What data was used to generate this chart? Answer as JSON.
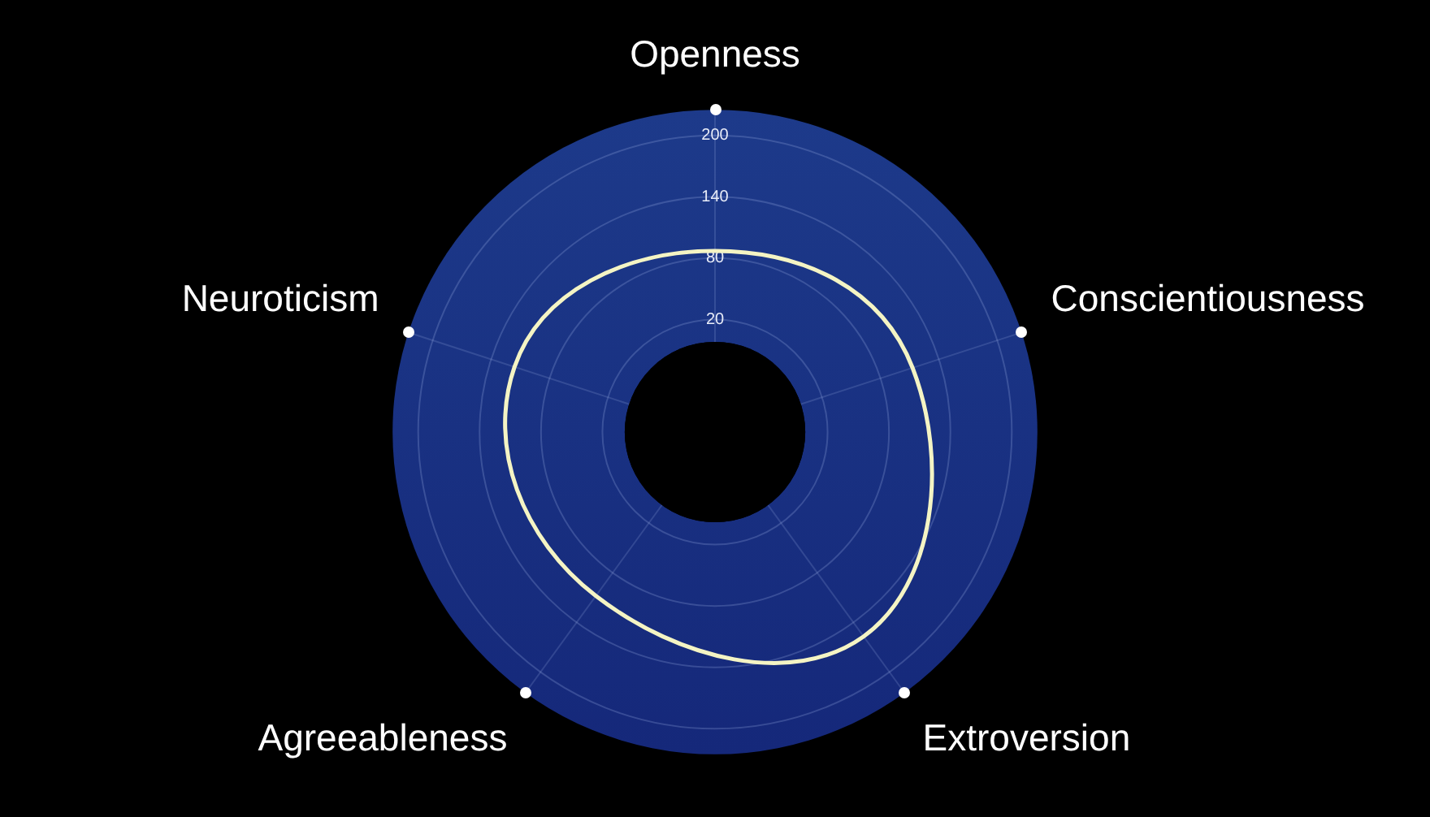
{
  "chart_data": {
    "type": "radar",
    "categories": [
      "Openness",
      "Conscientiousness",
      "Extroversion",
      "Agreeableness",
      "Neuroticism"
    ],
    "series": [
      {
        "color": "#f4f4c4",
        "values": [
          87,
          113,
          157,
          108,
          116
        ]
      }
    ],
    "ylim": [
      -90,
      225
    ],
    "yticks": [
      20,
      80,
      140,
      200
    ],
    "grid": true,
    "legend": false,
    "marker": "none",
    "line_style": "solid"
  }
}
